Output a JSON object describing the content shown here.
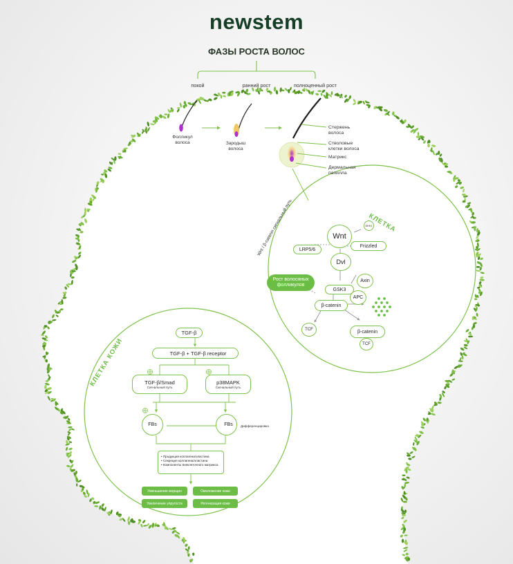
{
  "brand": {
    "logo": "newstem"
  },
  "phases": {
    "title": "ФАЗЫ РОСТА ВОЛОС",
    "items": [
      "покой",
      "ранний рост",
      "полноценный рост"
    ],
    "follicle_label": "Фолликул волоса",
    "germ_label": "Зародыш волоса",
    "parts": [
      "Стержень волоса",
      "Стволовые клетки волоса",
      "Матрикс",
      "Дермальная папилла"
    ]
  },
  "hair_cell": {
    "arc_title": "КЛЕТКА",
    "pathway_label": "Wnt / β-catenin сигнальный путь",
    "nodes": {
      "dkk": "DKK1",
      "wnt": "Wnt",
      "lrp": "LRP5/6",
      "frizzled": "Frizzled",
      "dvl": "Dvl",
      "axin": "Axin",
      "gsk3": "GSK3",
      "apc": "APC",
      "bcatenin": "β-catenin",
      "tcf": "TCF",
      "bcatenin2": "β-catenin",
      "tcf2": "TCF"
    },
    "result": "Рост волосяных фолликулов"
  },
  "skin_cell": {
    "arc_title": "КЛЕТКА КОЖИ",
    "tgf": "TGF-β",
    "receptor": "TGF-β + TGF-β receptor",
    "smad": "TGF-β/Smad",
    "smad_sub": "Сигнальный путь",
    "p38": "p38MAPK",
    "p38_sub": "Сигнальный путь",
    "fbs_left": "FBs",
    "fbs_right": "FBs",
    "differentiation": "Дифференцировка",
    "effects": [
      "Продукция коллагена/эластина",
      "Секреция коллагена/эластина",
      "Компоненты внеклеточного матрикса"
    ],
    "benefits": [
      "Уменьшение морщин",
      "Омоложение кожи",
      "Увеличение упругости",
      "Регенерация кожи"
    ]
  },
  "colors": {
    "accent": "#6cbd45",
    "dark": "#163d25",
    "follicle": "#b12fd0",
    "leaf": "#5f9f2c"
  }
}
